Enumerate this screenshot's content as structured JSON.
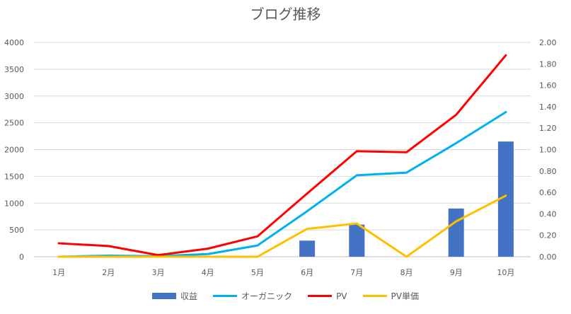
{
  "chart_data": {
    "type": "bar-line-combo",
    "title": "ブログ推移",
    "categories": [
      "1月",
      "2月",
      "3月",
      "4月",
      "5月",
      "6月",
      "7月",
      "8月",
      "9月",
      "10月"
    ],
    "y_left": {
      "ticks": [
        "0",
        "500",
        "1000",
        "1500",
        "2000",
        "2500",
        "3000",
        "3500",
        "4000"
      ],
      "ylim": [
        0,
        4000
      ]
    },
    "y_right": {
      "ticks": [
        "0.00",
        "0.20",
        "0.40",
        "0.60",
        "0.80",
        "1.00",
        "1.20",
        "1.40",
        "1.60",
        "1.80",
        "2.00"
      ],
      "ylim": [
        0,
        2.0
      ]
    },
    "series": [
      {
        "name": "収益",
        "type": "bar",
        "axis": "left",
        "color": "#4472c4",
        "values": [
          0,
          0,
          0,
          0,
          0,
          300,
          600,
          0,
          900,
          2150
        ]
      },
      {
        "name": "オーガニック",
        "type": "line",
        "axis": "left",
        "color": "#00b0f0",
        "values": [
          0,
          20,
          10,
          50,
          210,
          850,
          1520,
          1570,
          2120,
          2700
        ]
      },
      {
        "name": "PV",
        "type": "line",
        "axis": "left",
        "color": "#ff0000",
        "values": [
          250,
          200,
          30,
          150,
          380,
          1180,
          1970,
          1950,
          2650,
          3760
        ]
      },
      {
        "name": "PV単価",
        "type": "line",
        "axis": "right",
        "color": "#ffc000",
        "values": [
          0,
          0,
          0,
          0,
          0,
          0.26,
          0.31,
          0,
          0.33,
          0.57
        ]
      }
    ],
    "grid": true,
    "legend_position": "bottom"
  }
}
